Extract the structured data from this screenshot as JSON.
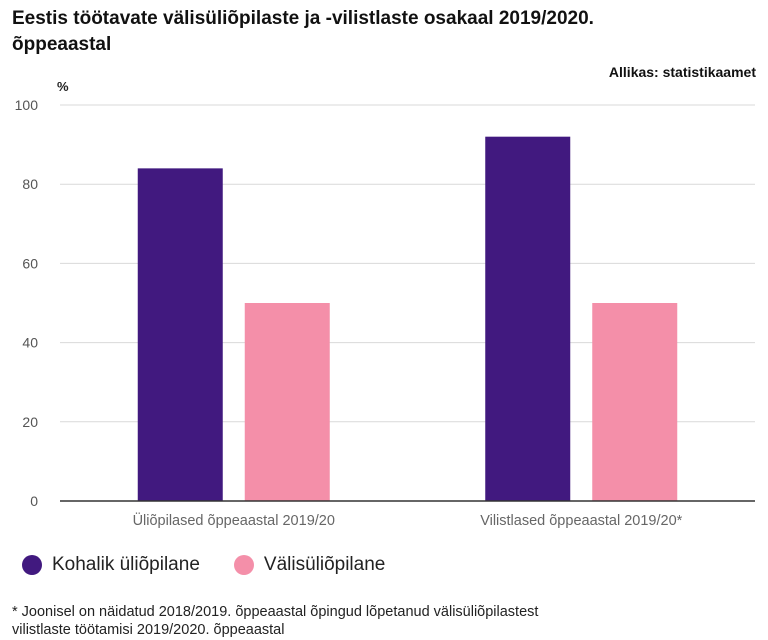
{
  "title": "Eestis töötavate välisüliõpilaste ja -vilistlaste osakaal 2019/2020. õppeaastal",
  "source": "Allikas: statistikaamet",
  "footnote": {
    "line1": "* Joonisel on näidatud 2018/2019. õppeaastal õpingud lõpetanud välisüliõpilastest",
    "line2": "vilistlaste töötamisi 2019/2020. õppeaastal"
  },
  "chart_data": {
    "type": "bar",
    "categories": [
      "Üliõpilased õppeaastal 2019/20",
      "Vilistlased õppeaastal 2019/20*"
    ],
    "series": [
      {
        "name": "Kohalik üliõpilane",
        "color": "#41197f",
        "values": [
          84,
          92
        ]
      },
      {
        "name": "Välisüliõpilane",
        "color": "#f48fa9",
        "values": [
          50,
          50
        ]
      }
    ],
    "ylabel": "%",
    "ylim": [
      0,
      100
    ],
    "yticks": [
      0,
      20,
      40,
      60,
      80,
      100
    ],
    "grid": true,
    "legend_position": "bottom-left"
  }
}
